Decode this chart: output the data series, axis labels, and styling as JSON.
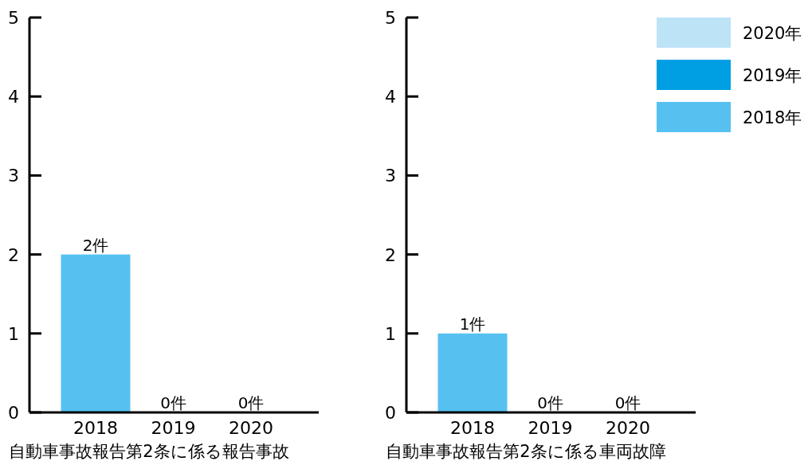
{
  "chart_data": [
    {
      "type": "bar",
      "xlabel": "自動車事故報告第2条に係る報告事故",
      "categories": [
        "2018",
        "2019",
        "2020"
      ],
      "ylim": [
        0,
        5
      ],
      "yticks": [
        0,
        1,
        2,
        3,
        4,
        5
      ],
      "series": [
        {
          "color": "#56c1f0",
          "values": [
            2,
            null,
            null
          ],
          "value_labels": [
            "2件",
            null,
            null
          ]
        },
        {
          "color": "#009fe3",
          "values": [
            null,
            0,
            null
          ],
          "value_labels": [
            null,
            "0件",
            null
          ]
        },
        {
          "color": "#bde3f7",
          "values": [
            null,
            null,
            0
          ],
          "value_labels": [
            null,
            null,
            "0件"
          ]
        }
      ]
    },
    {
      "type": "bar",
      "xlabel": "自動車事故報告第2条に係る車両故障",
      "categories": [
        "2018",
        "2019",
        "2020"
      ],
      "ylim": [
        0,
        5
      ],
      "yticks": [
        0,
        1,
        2,
        3,
        4,
        5
      ],
      "legend": "top right",
      "series": [
        {
          "name": "2018年",
          "color": "#56c1f0",
          "values": [
            1,
            null,
            null
          ],
          "value_labels": [
            "1件",
            null,
            null
          ]
        },
        {
          "name": "2019年",
          "color": "#009fe3",
          "values": [
            null,
            0,
            null
          ],
          "value_labels": [
            null,
            "0件",
            null
          ]
        },
        {
          "name": "2020年",
          "color": "#bde3f7",
          "values": [
            null,
            null,
            0
          ],
          "value_labels": [
            null,
            null,
            "0件"
          ]
        }
      ]
    }
  ]
}
